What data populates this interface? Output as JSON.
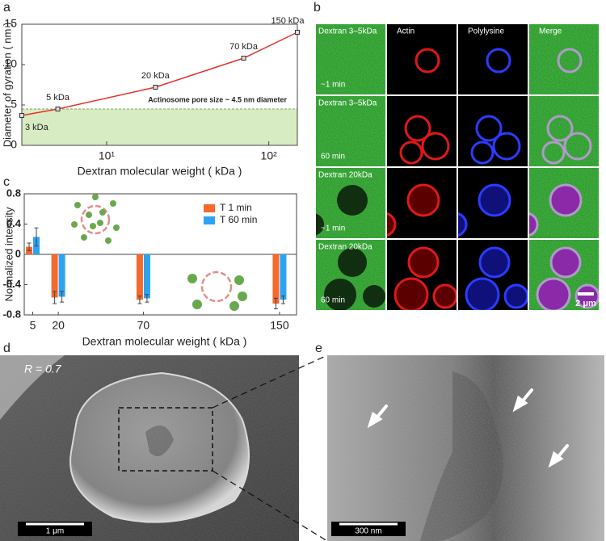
{
  "panel_labels": [
    "a",
    "b",
    "c",
    "d",
    "e"
  ],
  "chart_data": [
    {
      "type": "line",
      "xscale": "log",
      "xlabel": "Dextran molecular weight ( kDa )",
      "ylabel": "Diameter of gyration ( nm )",
      "x": [
        3,
        5,
        20,
        70,
        150
      ],
      "values": [
        3.7,
        4.5,
        7.2,
        10.8,
        14
      ],
      "point_labels": [
        "3 kDa",
        "5 kDa",
        "20 kDa",
        "70 kDa",
        "150 kDa"
      ],
      "color": "#e8302a",
      "xlim": [
        3,
        150
      ],
      "ylim": [
        0,
        15
      ],
      "xticks": [
        {
          "value": 10,
          "label": "10¹"
        },
        {
          "value": 100,
          "label": "10²"
        }
      ],
      "yticks": [
        0,
        5,
        10,
        15
      ],
      "threshold": 4.5,
      "threshold_label": "Actinosome pore size ~ 4.5 nm diameter",
      "threshold_color": "#d8ecc4"
    },
    {
      "type": "bar",
      "xlabel": "Dextran molecular weight ( kDa )",
      "ylabel": "Normalized intensity",
      "x": [
        5,
        20,
        70,
        150
      ],
      "xlim": [
        0,
        160
      ],
      "xticks": [
        5,
        20,
        70,
        150
      ],
      "series": [
        {
          "name": "T 1 min",
          "color": "#f4692c",
          "values": [
            0.1,
            -0.57,
            -0.6,
            -0.65
          ],
          "errors": [
            0.05,
            0.08,
            0.05,
            0.07
          ]
        },
        {
          "name": "T 60 min",
          "color": "#2ea3f2",
          "values": [
            0.23,
            -0.56,
            -0.58,
            -0.6
          ],
          "errors": [
            0.12,
            0.07,
            0.05,
            0.05
          ]
        }
      ],
      "ylim": [
        -0.8,
        0.8
      ],
      "yticks": [
        -0.8,
        -0.4,
        0,
        0.4,
        0.8
      ]
    }
  ],
  "micrographs": {
    "columns": [
      "Actin",
      "Polylysine",
      "Merge"
    ],
    "rows": [
      {
        "label": "Dextran 3–5kDa",
        "time": "~1 min"
      },
      {
        "label": "Dextran 3–5kDa",
        "time": "60 min"
      },
      {
        "label": "Dextran 20kDa",
        "time": "~1 min"
      },
      {
        "label": "Dextran 20kDa",
        "time": "60 min"
      }
    ],
    "scale_bar": "2 μm"
  },
  "sem": {
    "d": {
      "annotation": "R = 0.7",
      "scale_bar": "1 μm"
    },
    "e": {
      "scale_bar": "300 nm"
    }
  }
}
